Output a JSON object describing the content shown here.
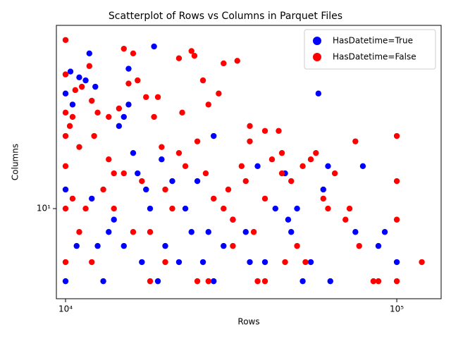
{
  "chart_data": {
    "type": "scatter",
    "title": "Scatterplot of Rows vs Columns in Parquet Files",
    "xlabel": "Rows",
    "ylabel": "Columns",
    "xscale": "log",
    "yscale": "log",
    "grid": false,
    "legend": "upper right",
    "xlim": [
      9383,
      136100
    ],
    "ylim": [
      4.23,
      57.5
    ],
    "xticks": [
      {
        "value": 10000,
        "label": "10⁴"
      },
      {
        "value": 100000,
        "label": "10⁵"
      }
    ],
    "yticks": [
      {
        "value": 10,
        "label": "10¹"
      }
    ],
    "series": [
      {
        "name": "HasDatetime=True",
        "color": "#0000ff",
        "x": [
          10000,
          10000,
          10000,
          10350,
          10500,
          10800,
          11000,
          11500,
          11800,
          12300,
          12000,
          12500,
          13000,
          13500,
          14000,
          14500,
          15000,
          15500,
          15500,
          15000,
          16000,
          16500,
          17000,
          17500,
          18000,
          18500,
          19000,
          19500,
          20000,
          21000,
          22000,
          23000,
          24000,
          25000,
          26000,
          27000,
          28000,
          28000,
          30000,
          32000,
          35000,
          36000,
          38000,
          40000,
          43000,
          46000,
          47000,
          50000,
          52000,
          55000,
          58000,
          60000,
          62000,
          63000,
          79000,
          75000,
          92000,
          88000,
          100000,
          48000
        ],
        "values": [
          5,
          30,
          12,
          37,
          27,
          7,
          35,
          34,
          44,
          32,
          11,
          7,
          5,
          8,
          9,
          22,
          7,
          38,
          27,
          24,
          17,
          14,
          6,
          12,
          10,
          47,
          5,
          16,
          7,
          13,
          6,
          10,
          8,
          13,
          6,
          8,
          20,
          5,
          7,
          9,
          8,
          6,
          15,
          6,
          10,
          14,
          9,
          10,
          5,
          6,
          30,
          12,
          15,
          5,
          15,
          8,
          8,
          7,
          6,
          8
        ]
      },
      {
        "name": "HasDatetime=False",
        "color": "#ff0000",
        "x": [
          10000,
          10000,
          10000,
          10000,
          10000,
          10000,
          10000,
          10300,
          10500,
          10700,
          11000,
          11200,
          11500,
          11800,
          12000,
          12200,
          12500,
          13000,
          13500,
          14000,
          14500,
          15000,
          15500,
          16000,
          16500,
          17000,
          17500,
          18000,
          18500,
          19000,
          19500,
          20000,
          21000,
          22000,
          22500,
          23000,
          24000,
          24500,
          25000,
          26000,
          26500,
          27000,
          28000,
          29000,
          30000,
          31000,
          32000,
          33000,
          34000,
          35000,
          36000,
          36000,
          37000,
          38000,
          40000,
          40000,
          42000,
          44000,
          45000,
          46000,
          48000,
          50000,
          52000,
          53000,
          55000,
          57000,
          60000,
          62000,
          65000,
          70000,
          72000,
          75000,
          77000,
          85000,
          88000,
          100000,
          100000,
          100000,
          100000,
          119000,
          40000,
          45000,
          27000,
          32000,
          25000,
          18000,
          16000,
          14000,
          12000,
          11000,
          10500,
          13500,
          15000,
          20000,
          22000,
          30000
        ],
        "values": [
          50,
          36,
          25,
          20,
          15,
          10,
          6,
          22,
          24,
          31,
          18,
          32,
          10,
          39,
          28,
          20,
          25,
          12,
          24,
          14,
          26,
          46,
          33,
          44,
          34,
          13,
          29,
          8,
          24,
          29,
          18,
          6,
          10,
          42,
          25,
          15,
          45,
          43,
          19,
          34,
          14,
          27,
          11,
          30,
          40,
          12,
          9,
          41,
          15,
          13,
          22,
          19,
          8,
          5,
          21,
          11,
          16,
          21,
          17,
          6,
          13,
          7,
          15,
          6,
          16,
          17,
          11,
          10,
          14,
          9,
          10,
          19,
          7,
          5,
          5,
          20,
          13,
          9,
          5,
          6,
          5,
          14,
          5,
          7,
          5,
          5,
          8,
          10,
          6,
          8,
          11,
          16,
          14,
          12,
          17,
          10
        ]
      }
    ]
  }
}
